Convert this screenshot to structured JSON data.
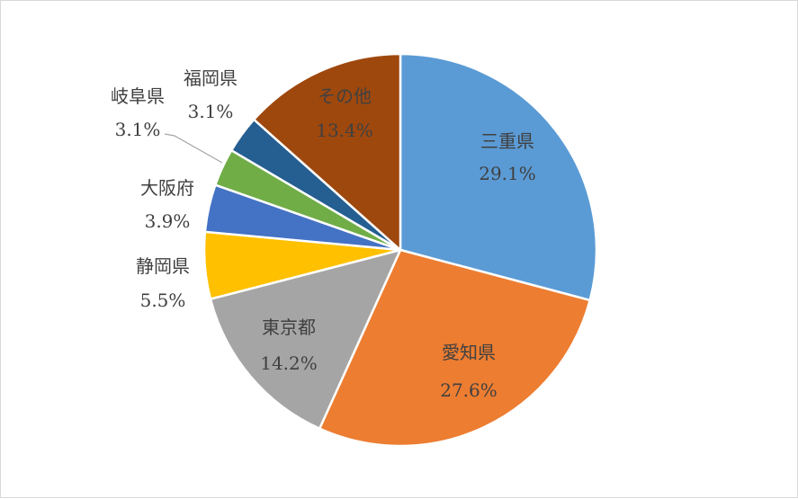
{
  "chart_data": {
    "type": "pie",
    "title": "",
    "categories": [
      "三重県",
      "愛知県",
      "東京都",
      "静岡県",
      "大阪府",
      "岐阜県",
      "福岡県",
      "その他"
    ],
    "values": [
      29.1,
      27.6,
      14.2,
      5.5,
      3.9,
      3.1,
      3.1,
      13.4
    ],
    "value_labels": [
      "29.1%",
      "27.6%",
      "14.2%",
      "5.5%",
      "3.9%",
      "3.1%",
      "3.1%",
      "13.4%"
    ],
    "colors": [
      "#5b9bd5",
      "#ed7d31",
      "#a5a5a5",
      "#ffc000",
      "#4472c4",
      "#70ad47",
      "#255e91",
      "#9e480e"
    ],
    "start_angle": "12 o'clock",
    "direction": "clockwise",
    "legend": "none",
    "label_placement": [
      "inside",
      "inside",
      "inside",
      "outside",
      "outside",
      "outside",
      "outside",
      "inside"
    ]
  }
}
